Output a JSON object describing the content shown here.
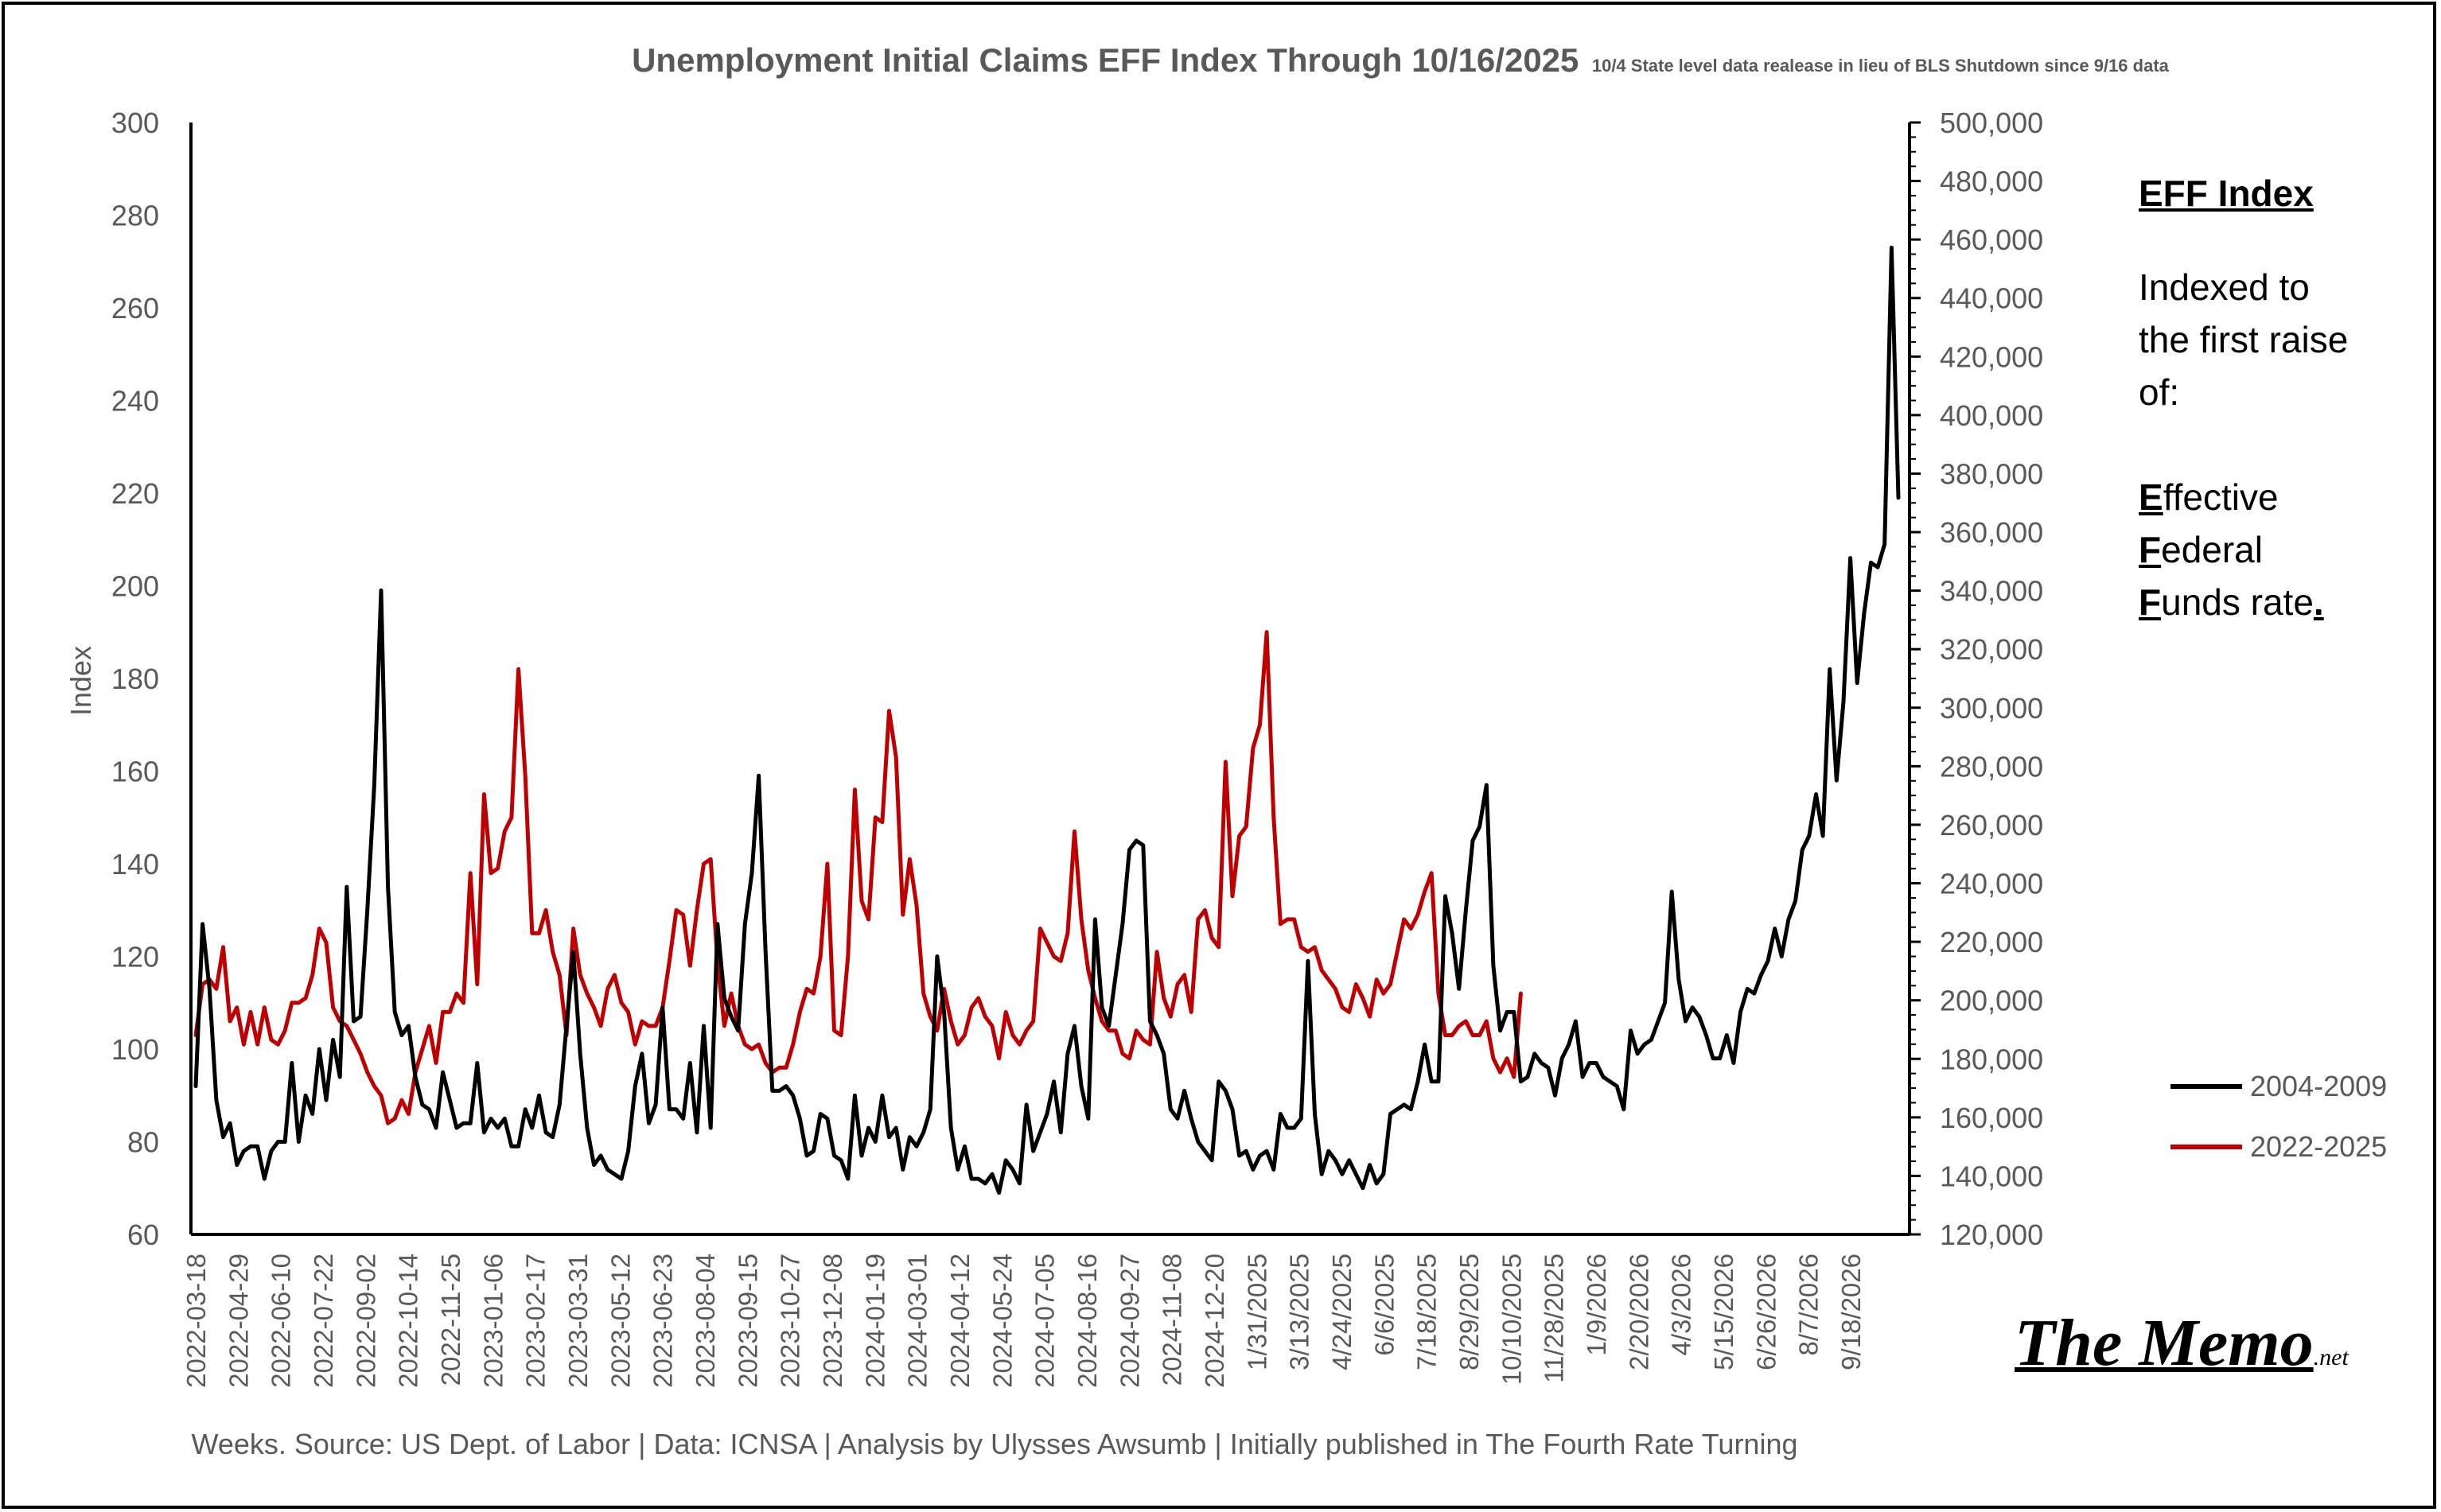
{
  "chart_data": {
    "type": "line",
    "title": "Unemployment Initial Claims EFF Index Through 10/16/2025",
    "subtitle": "10/4 State level data realease in lieu of BLS Shutdown since 9/16 data",
    "ylabel": "Index",
    "ylim": [
      60,
      300
    ],
    "yticks": [
      60,
      80,
      100,
      120,
      140,
      160,
      180,
      200,
      220,
      240,
      260,
      280,
      300
    ],
    "y2lim": [
      120000,
      500000
    ],
    "y2ticks": [
      "120,000",
      "140,000",
      "160,000",
      "180,000",
      "200,000",
      "220,000",
      "240,000",
      "260,000",
      "280,000",
      "300,000",
      "320,000",
      "340,000",
      "360,000",
      "380,000",
      "400,000",
      "420,000",
      "440,000",
      "460,000",
      "480,000",
      "500,000"
    ],
    "x_tick_labels": [
      "2022-03-18",
      "2022-04-29",
      "2022-06-10",
      "2022-07-22",
      "2022-09-02",
      "2022-10-14",
      "2022-11-25",
      "2023-01-06",
      "2023-02-17",
      "2023-03-31",
      "2023-05-12",
      "2023-06-23",
      "2023-08-04",
      "2023-09-15",
      "2023-10-27",
      "2023-12-08",
      "2024-01-19",
      "2024-03-01",
      "2024-04-12",
      "2024-05-24",
      "2024-07-05",
      "2024-08-16",
      "2024-09-27",
      "2024-11-08",
      "2024-12-20",
      "1/31/2025",
      "3/13/2025",
      "4/24/2025",
      "6/6/2025",
      "7/18/2025",
      "8/29/2025",
      "10/10/2025",
      "11/28/2025",
      "1/9/2026",
      "2/20/2026",
      "4/3/2026",
      "5/15/2026",
      "6/26/2026",
      "8/7/2026",
      "9/18/2026"
    ],
    "xlabel": "Weeks. Source: US Dept. of Labor | Data: ICNSA | Analysis by Ulysses Awsumb | Initially published in The Fourth Rate Turning",
    "legend_position": "right",
    "grid": false,
    "series": [
      {
        "name": "2004-2009",
        "color": "#000000",
        "values": [
          92,
          127,
          113,
          89,
          81,
          84,
          75,
          78,
          79,
          79,
          72,
          78,
          80,
          80,
          97,
          80,
          90,
          86,
          100,
          89,
          102,
          94,
          135,
          106,
          107,
          130,
          157,
          199,
          135,
          108,
          103,
          105,
          94,
          88,
          87,
          83,
          95,
          89,
          83,
          84,
          84,
          97,
          82,
          85,
          83,
          85,
          79,
          79,
          87,
          83,
          90,
          82,
          81,
          88,
          105,
          121,
          99,
          83,
          75,
          77,
          74,
          73,
          72,
          78,
          92,
          99,
          84,
          88,
          109,
          87,
          87,
          85,
          97,
          82,
          105,
          83,
          127,
          111,
          107,
          104,
          127,
          138,
          159,
          121,
          91,
          91,
          92,
          90,
          85,
          77,
          78,
          86,
          85,
          77,
          76,
          72,
          90,
          77,
          83,
          80,
          90,
          81,
          83,
          74,
          81,
          79,
          82,
          87,
          120,
          108,
          83,
          74,
          79,
          72,
          72,
          71,
          73,
          69,
          76,
          74,
          71,
          88,
          78,
          82,
          86,
          93,
          82,
          99,
          105,
          92,
          85,
          128,
          109,
          105,
          116,
          127,
          143,
          145,
          144,
          106,
          103,
          99,
          87,
          85,
          91,
          85,
          80,
          78,
          76,
          93,
          91,
          87,
          77,
          78,
          74,
          77,
          78,
          74,
          86,
          83,
          83,
          85,
          119,
          86,
          73,
          78,
          76,
          73,
          76,
          73,
          70,
          75,
          71,
          73,
          86,
          87,
          88,
          87,
          93,
          101,
          93,
          93,
          133,
          125,
          113,
          130,
          145,
          148,
          157,
          118,
          104,
          108,
          108,
          93,
          94,
          99,
          97,
          96,
          90,
          98,
          101,
          106,
          94,
          97,
          97,
          94,
          93,
          92,
          87,
          104,
          99,
          101,
          102,
          106,
          110,
          134,
          115,
          106,
          109,
          107,
          103,
          98,
          98,
          103,
          97,
          108,
          113,
          112,
          116,
          119,
          126,
          120,
          128,
          132,
          143,
          146,
          155,
          146,
          182,
          158,
          175,
          206,
          179,
          194,
          205,
          204,
          209,
          273,
          219
        ]
      },
      {
        "name": "2022-2025",
        "color": "#c00000",
        "values": [
          103,
          114,
          115,
          113,
          122,
          106,
          109,
          101,
          108,
          101,
          109,
          102,
          101,
          104,
          110,
          110,
          111,
          116,
          126,
          123,
          109,
          106,
          105,
          102,
          99,
          95,
          92,
          90,
          84,
          85,
          89,
          86,
          95,
          100,
          105,
          97,
          108,
          108,
          112,
          110,
          138,
          114,
          155,
          138,
          139,
          147,
          150,
          182,
          159,
          125,
          125,
          130,
          121,
          116,
          103,
          126,
          116,
          112,
          109,
          105,
          113,
          116,
          110,
          108,
          101,
          106,
          105,
          105,
          109,
          119,
          130,
          129,
          118,
          130,
          140,
          141,
          119,
          105,
          112,
          105,
          101,
          100,
          101,
          97,
          95,
          96,
          96,
          101,
          108,
          113,
          112,
          120,
          140,
          104,
          103,
          120,
          156,
          132,
          128,
          150,
          149,
          173,
          163,
          129,
          141,
          131,
          112,
          107,
          104,
          113,
          106,
          101,
          103,
          109,
          111,
          107,
          105,
          98,
          108,
          103,
          101,
          104,
          106,
          126,
          123,
          120,
          119,
          125,
          147,
          128,
          117,
          111,
          106,
          104,
          104,
          99,
          98,
          104,
          102,
          101,
          121,
          111,
          107,
          114,
          116,
          108,
          128,
          130,
          124,
          122,
          162,
          133,
          146,
          148,
          165,
          170,
          190,
          150,
          127,
          128,
          128,
          122,
          121,
          122,
          117,
          115,
          113,
          109,
          108,
          114,
          111,
          107,
          115,
          112,
          114,
          121,
          128,
          126,
          129,
          134,
          138,
          112,
          103,
          103,
          105,
          106,
          103,
          103,
          106,
          98,
          95,
          98,
          94,
          112
        ]
      }
    ]
  },
  "side_panel": {
    "heading": "EFF Index",
    "line1": "Indexed to",
    "line2": "the first raise",
    "line3": "of:",
    "eff1_bold": "E",
    "eff1_rest": "ffective",
    "eff2_bold": "F",
    "eff2_rest": "ederal",
    "eff3_bold": "F",
    "eff3_rest": "unds rate",
    "eff3_end": "."
  },
  "logo": {
    "main": "The Memo",
    "suffix": ".net"
  }
}
